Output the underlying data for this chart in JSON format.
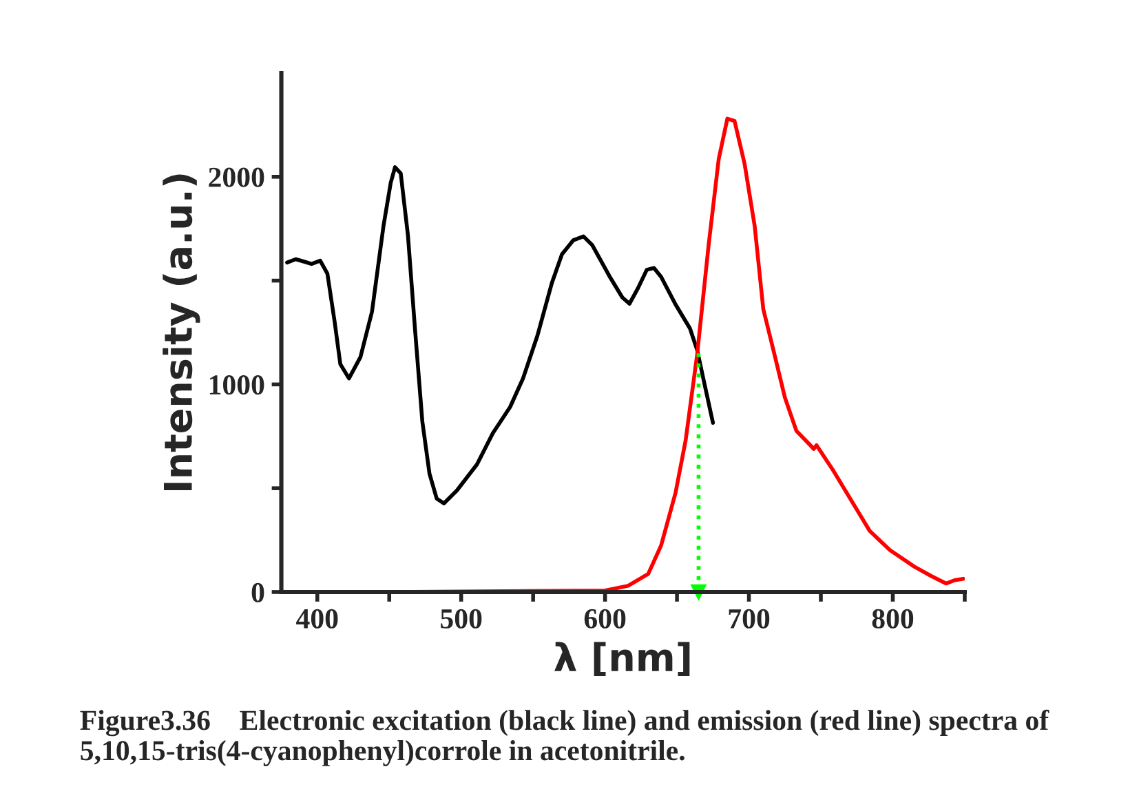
{
  "chart_data": {
    "type": "line",
    "xlabel": "λ [nm]",
    "ylabel": "Intensity (a.u.)",
    "xlim": [
      375,
      850
    ],
    "ylim": [
      0,
      2500
    ],
    "xticks": [
      400,
      {
        "value": 450,
        "label": null
      },
      500,
      {
        "value": 550,
        "label": null
      },
      600,
      {
        "value": 650,
        "label": null
      },
      700,
      {
        "value": 750,
        "label": null
      },
      800,
      {
        "value": 850,
        "label": null
      }
    ],
    "yticks": [
      0,
      {
        "value": 500,
        "label": null
      },
      1000,
      {
        "value": 1500,
        "label": null
      },
      2000
    ],
    "grid": false,
    "series": [
      {
        "color": "#000000",
        "x": [
          379,
          385,
          392,
          396,
          402,
          407,
          412,
          416,
          422,
          430,
          438,
          446,
          451,
          454,
          458,
          463,
          468,
          473,
          478,
          483,
          488,
          497,
          511,
          522,
          534,
          543,
          553,
          563,
          570,
          578,
          585,
          591,
          603,
          612,
          617,
          623,
          629,
          634,
          639,
          649,
          659,
          664,
          669,
          675
        ],
        "values": [
          1587,
          1603,
          1589,
          1580,
          1596,
          1534,
          1304,
          1098,
          1029,
          1132,
          1350,
          1763,
          1970,
          2046,
          2016,
          1718,
          1258,
          822,
          569,
          450,
          427,
          489,
          615,
          765,
          891,
          1029,
          1235,
          1488,
          1626,
          1695,
          1713,
          1672,
          1522,
          1419,
          1389,
          1465,
          1552,
          1561,
          1518,
          1385,
          1270,
          1166,
          1006,
          815
        ]
      },
      {
        "color": "#ff0000",
        "x": [
          450,
          600,
          616,
          630,
          639,
          649,
          656,
          664,
          672,
          679,
          685,
          690,
          697,
          704,
          710,
          717,
          725,
          733,
          742,
          745,
          747,
          758,
          771,
          784,
          798,
          815,
          827,
          837,
          843,
          849
        ],
        "values": [
          0,
          7,
          30,
          87,
          225,
          478,
          730,
          1143,
          1672,
          2085,
          2280,
          2269,
          2062,
          1763,
          1362,
          1166,
          937,
          776,
          712,
          689,
          707,
          592,
          443,
          294,
          202,
          122,
          76,
          41,
          57,
          64
        ]
      },
      {
        "color": "#00ff00",
        "x": [
          665,
          665
        ],
        "values": [
          1150,
          0
        ],
        "line_style": "dotted",
        "marker": "triangle"
      }
    ],
    "annotations": [
      "Figure3.36    Electronic excitation (black line) and emission (red line) spectra of 5,10,15-tris(4-cyanophenyl)corrole in acetonitrile."
    ]
  }
}
